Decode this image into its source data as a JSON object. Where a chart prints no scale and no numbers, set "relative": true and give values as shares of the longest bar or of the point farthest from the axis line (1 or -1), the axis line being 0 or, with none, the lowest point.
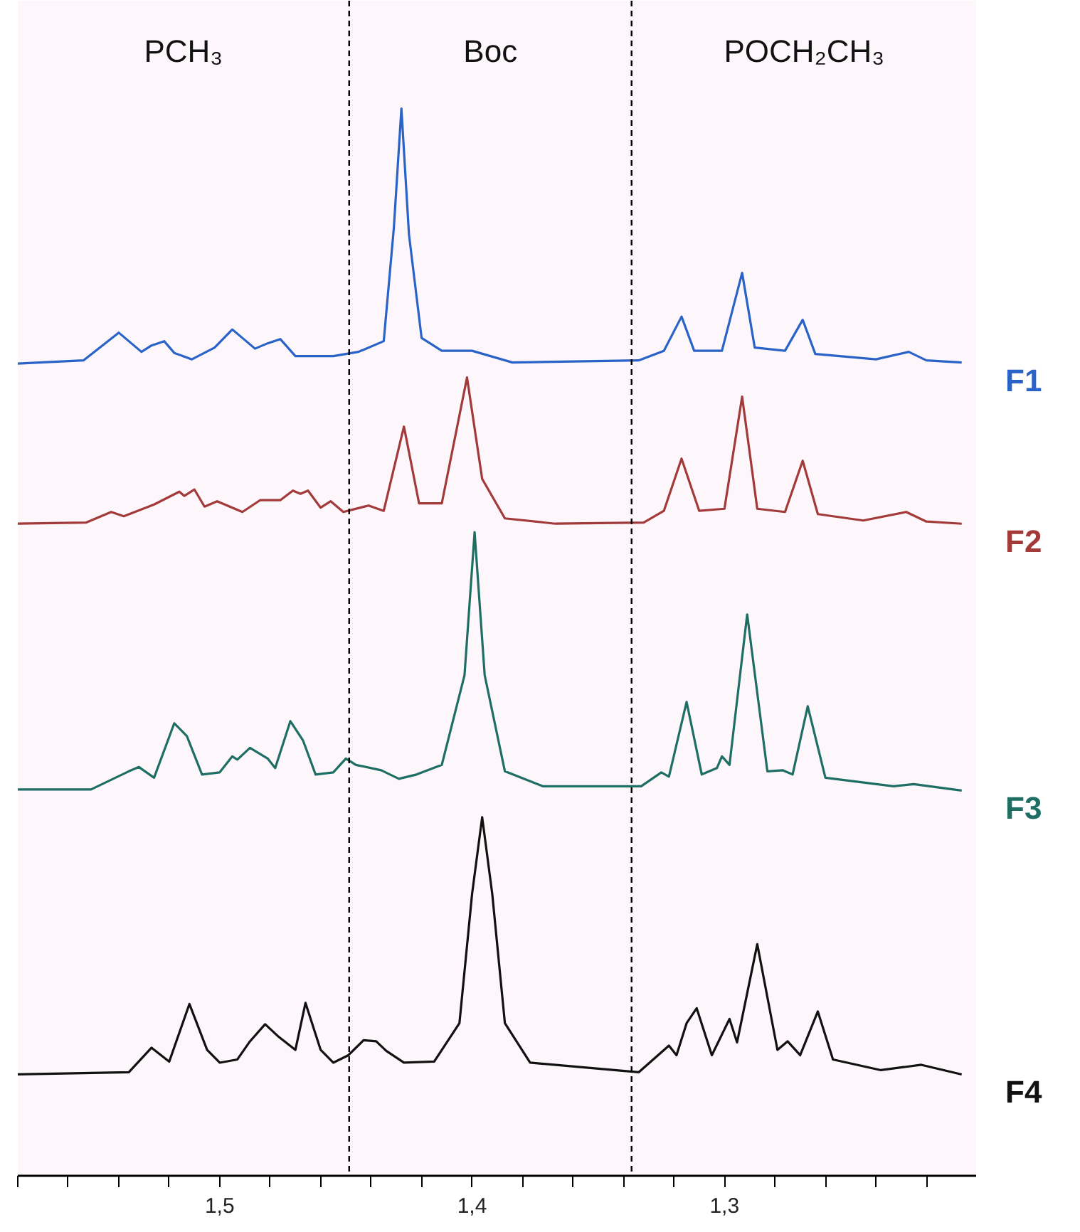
{
  "chart_data": {
    "type": "line",
    "relative": true,
    "tick_labels": "x",
    "grid": false,
    "xlim": [
      1.58,
      1.2
    ],
    "xticks": [
      {
        "value": 1.58,
        "label": null
      },
      {
        "value": 1.56,
        "label": null
      },
      {
        "value": 1.54,
        "label": null
      },
      {
        "value": 1.52,
        "label": null
      },
      {
        "value": 1.5,
        "label": "1,5"
      },
      {
        "value": 1.48,
        "label": null
      },
      {
        "value": 1.46,
        "label": null
      },
      {
        "value": 1.44,
        "label": null
      },
      {
        "value": 1.42,
        "label": null
      },
      {
        "value": 1.4,
        "label": "1,4"
      },
      {
        "value": 1.38,
        "label": null
      },
      {
        "value": 1.36,
        "label": null
      },
      {
        "value": 1.34,
        "label": null
      },
      {
        "value": 1.32,
        "label": null
      },
      {
        "value": 1.3,
        "label": "1,3"
      },
      {
        "value": 1.28,
        "label": null
      },
      {
        "value": 1.26,
        "label": null
      },
      {
        "value": 1.24,
        "label": null
      },
      {
        "value": 1.22,
        "label": null
      },
      {
        "value": 1.2,
        "label": null
      }
    ],
    "ref_lines": [
      {
        "axis": "x",
        "value": 1.4487,
        "label": null,
        "color": "#000000",
        "line_style": "dashed"
      },
      {
        "axis": "x",
        "value": 1.3368,
        "label": null,
        "color": "#000000",
        "line_style": "dashed"
      }
    ],
    "annotations": [
      "PCH₃",
      "Boc",
      "POCH₂CH₃"
    ],
    "series": [
      {
        "name": "F1",
        "color": "#2a63c8",
        "x": [
          1.58,
          1.554,
          1.54,
          1.531,
          1.527,
          1.522,
          1.518,
          1.511,
          1.502,
          1.495,
          1.486,
          1.481,
          1.476,
          1.47,
          1.455,
          1.445,
          1.435,
          1.431,
          1.428,
          1.425,
          1.42,
          1.412,
          1.4,
          1.384,
          1.334,
          1.324,
          1.317,
          1.312,
          1.301,
          1.293,
          1.288,
          1.276,
          1.269,
          1.264,
          1.24,
          1.227,
          1.22,
          1.206
        ],
        "values": [
          0.761,
          0.764,
          0.79,
          0.772,
          0.778,
          0.782,
          0.771,
          0.765,
          0.776,
          0.793,
          0.775,
          0.78,
          0.784,
          0.768,
          0.768,
          0.772,
          0.782,
          0.888,
          1.0,
          0.882,
          0.785,
          0.773,
          0.773,
          0.762,
          0.764,
          0.773,
          0.805,
          0.773,
          0.773,
          0.846,
          0.776,
          0.773,
          0.802,
          0.77,
          0.765,
          0.772,
          0.764,
          0.762
        ]
      },
      {
        "name": "F2",
        "color": "#a33a3a",
        "x": [
          1.58,
          1.553,
          1.543,
          1.538,
          1.526,
          1.516,
          1.514,
          1.51,
          1.506,
          1.501,
          1.491,
          1.484,
          1.476,
          1.471,
          1.468,
          1.465,
          1.46,
          1.456,
          1.451,
          1.441,
          1.435,
          1.427,
          1.421,
          1.412,
          1.402,
          1.396,
          1.387,
          1.367,
          1.332,
          1.324,
          1.317,
          1.31,
          1.3,
          1.293,
          1.287,
          1.276,
          1.269,
          1.263,
          1.245,
          1.228,
          1.22,
          1.206
        ],
        "values": [
          0.611,
          0.612,
          0.622,
          0.618,
          0.629,
          0.641,
          0.637,
          0.643,
          0.627,
          0.632,
          0.622,
          0.633,
          0.633,
          0.642,
          0.639,
          0.642,
          0.626,
          0.632,
          0.622,
          0.628,
          0.623,
          0.702,
          0.63,
          0.63,
          0.748,
          0.653,
          0.616,
          0.611,
          0.612,
          0.623,
          0.672,
          0.623,
          0.625,
          0.73,
          0.625,
          0.622,
          0.67,
          0.62,
          0.614,
          0.622,
          0.613,
          0.611
        ]
      },
      {
        "name": "F3",
        "color": "#1f6e64",
        "x": [
          1.58,
          1.551,
          1.536,
          1.532,
          1.526,
          1.518,
          1.513,
          1.507,
          1.5,
          1.495,
          1.493,
          1.488,
          1.481,
          1.478,
          1.472,
          1.467,
          1.462,
          1.455,
          1.45,
          1.446,
          1.436,
          1.429,
          1.422,
          1.412,
          1.403,
          1.399,
          1.395,
          1.387,
          1.372,
          1.333,
          1.325,
          1.322,
          1.315,
          1.309,
          1.303,
          1.301,
          1.298,
          1.291,
          1.283,
          1.277,
          1.273,
          1.267,
          1.26,
          1.233,
          1.225,
          1.206
        ],
        "values": [
          0.362,
          0.362,
          0.379,
          0.383,
          0.373,
          0.424,
          0.412,
          0.376,
          0.378,
          0.393,
          0.39,
          0.401,
          0.391,
          0.382,
          0.426,
          0.408,
          0.376,
          0.378,
          0.391,
          0.385,
          0.38,
          0.372,
          0.376,
          0.385,
          0.469,
          0.603,
          0.469,
          0.379,
          0.365,
          0.365,
          0.378,
          0.374,
          0.444,
          0.376,
          0.382,
          0.393,
          0.385,
          0.526,
          0.379,
          0.38,
          0.376,
          0.44,
          0.373,
          0.365,
          0.367,
          0.361
        ]
      },
      {
        "name": "F4",
        "color": "#111111",
        "x": [
          1.58,
          1.536,
          1.527,
          1.52,
          1.512,
          1.505,
          1.5,
          1.493,
          1.488,
          1.482,
          1.477,
          1.47,
          1.466,
          1.46,
          1.455,
          1.449,
          1.443,
          1.438,
          1.434,
          1.427,
          1.415,
          1.405,
          1.4,
          1.396,
          1.392,
          1.387,
          1.377,
          1.334,
          1.322,
          1.319,
          1.315,
          1.311,
          1.305,
          1.298,
          1.295,
          1.287,
          1.279,
          1.275,
          1.27,
          1.263,
          1.257,
          1.238,
          1.222,
          1.206
        ],
        "values": [
          0.095,
          0.097,
          0.12,
          0.107,
          0.161,
          0.118,
          0.106,
          0.109,
          0.126,
          0.142,
          0.131,
          0.118,
          0.162,
          0.118,
          0.106,
          0.113,
          0.127,
          0.126,
          0.117,
          0.106,
          0.107,
          0.143,
          0.264,
          0.336,
          0.264,
          0.143,
          0.106,
          0.097,
          0.122,
          0.113,
          0.143,
          0.157,
          0.113,
          0.147,
          0.125,
          0.217,
          0.118,
          0.126,
          0.113,
          0.154,
          0.109,
          0.099,
          0.104,
          0.095
        ]
      }
    ]
  }
}
